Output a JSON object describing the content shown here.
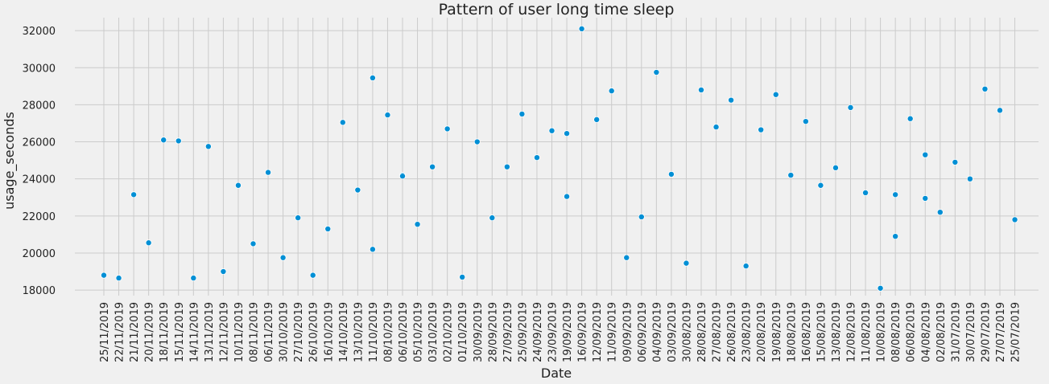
{
  "colors": {
    "background": "#f0f0f0",
    "grid": "#cbcbcb",
    "point": "#008fd5",
    "point_edge": "#ffffff",
    "text": "#222222"
  },
  "chart_data": {
    "type": "scatter",
    "title": "Pattern of user long time sleep",
    "xlabel": "Date",
    "ylabel": "usage_seconds",
    "x_axis_type": "categorical",
    "ylim": [
      17700,
      32700
    ],
    "yticks": [
      18000,
      20000,
      22000,
      24000,
      26000,
      28000,
      30000,
      32000
    ],
    "grid": true,
    "x_tick_rotation": -90,
    "categories": [
      "25/11/2019",
      "22/11/2019",
      "21/11/2019",
      "20/11/2019",
      "18/11/2019",
      "15/11/2019",
      "14/11/2019",
      "13/11/2019",
      "12/11/2019",
      "10/11/2019",
      "08/11/2019",
      "06/11/2019",
      "30/10/2019",
      "27/10/2019",
      "26/10/2019",
      "16/10/2019",
      "14/10/2019",
      "13/10/2019",
      "11/10/2019",
      "08/10/2019",
      "06/10/2019",
      "05/10/2019",
      "03/10/2019",
      "02/10/2019",
      "01/10/2019",
      "30/09/2019",
      "28/09/2019",
      "27/09/2019",
      "25/09/2019",
      "24/09/2019",
      "23/09/2019",
      "19/09/2019",
      "16/09/2019",
      "12/09/2019",
      "11/09/2019",
      "09/09/2019",
      "06/09/2019",
      "04/09/2019",
      "03/09/2019",
      "30/08/2019",
      "28/08/2019",
      "27/08/2019",
      "26/08/2019",
      "23/08/2019",
      "20/08/2019",
      "19/08/2019",
      "18/08/2019",
      "16/08/2019",
      "15/08/2019",
      "13/08/2019",
      "12/08/2019",
      "11/08/2019",
      "10/08/2019",
      "08/08/2019",
      "06/08/2019",
      "04/08/2019",
      "02/08/2019",
      "31/07/2019",
      "30/07/2019",
      "29/07/2019",
      "27/07/2019",
      "25/07/2019"
    ],
    "points": [
      {
        "x": "25/11/2019",
        "y": 18800
      },
      {
        "x": "22/11/2019",
        "y": 18650
      },
      {
        "x": "21/11/2019",
        "y": 23150
      },
      {
        "x": "20/11/2019",
        "y": 20550
      },
      {
        "x": "18/11/2019",
        "y": 26100
      },
      {
        "x": "15/11/2019",
        "y": 26050
      },
      {
        "x": "14/11/2019",
        "y": 18650
      },
      {
        "x": "13/11/2019",
        "y": 25750
      },
      {
        "x": "12/11/2019",
        "y": 19000
      },
      {
        "x": "10/11/2019",
        "y": 23650
      },
      {
        "x": "08/11/2019",
        "y": 20500
      },
      {
        "x": "06/11/2019",
        "y": 24350
      },
      {
        "x": "30/10/2019",
        "y": 19750
      },
      {
        "x": "27/10/2019",
        "y": 21900
      },
      {
        "x": "26/10/2019",
        "y": 18800
      },
      {
        "x": "16/10/2019",
        "y": 21300
      },
      {
        "x": "14/10/2019",
        "y": 27050
      },
      {
        "x": "13/10/2019",
        "y": 23400
      },
      {
        "x": "11/10/2019",
        "y": 29450
      },
      {
        "x": "11/10/2019",
        "y": 20200
      },
      {
        "x": "08/10/2019",
        "y": 27450
      },
      {
        "x": "06/10/2019",
        "y": 24200
      },
      {
        "x": "06/10/2019",
        "y": 24150
      },
      {
        "x": "05/10/2019",
        "y": 21550
      },
      {
        "x": "03/10/2019",
        "y": 24650
      },
      {
        "x": "02/10/2019",
        "y": 26700
      },
      {
        "x": "01/10/2019",
        "y": 18700
      },
      {
        "x": "30/09/2019",
        "y": 26000
      },
      {
        "x": "28/09/2019",
        "y": 21900
      },
      {
        "x": "27/09/2019",
        "y": 24650
      },
      {
        "x": "25/09/2019",
        "y": 27500
      },
      {
        "x": "24/09/2019",
        "y": 25150
      },
      {
        "x": "23/09/2019",
        "y": 26600
      },
      {
        "x": "19/09/2019",
        "y": 26450
      },
      {
        "x": "19/09/2019",
        "y": 23050
      },
      {
        "x": "16/09/2019",
        "y": 32100
      },
      {
        "x": "12/09/2019",
        "y": 27200
      },
      {
        "x": "11/09/2019",
        "y": 28750
      },
      {
        "x": "09/09/2019",
        "y": 19750
      },
      {
        "x": "06/09/2019",
        "y": 21950
      },
      {
        "x": "04/09/2019",
        "y": 29750
      },
      {
        "x": "03/09/2019",
        "y": 24250
      },
      {
        "x": "30/08/2019",
        "y": 19450
      },
      {
        "x": "28/08/2019",
        "y": 28800
      },
      {
        "x": "27/08/2019",
        "y": 26800
      },
      {
        "x": "26/08/2019",
        "y": 28250
      },
      {
        "x": "23/08/2019",
        "y": 19300
      },
      {
        "x": "20/08/2019",
        "y": 26650
      },
      {
        "x": "19/08/2019",
        "y": 28550
      },
      {
        "x": "18/08/2019",
        "y": 24200
      },
      {
        "x": "16/08/2019",
        "y": 27100
      },
      {
        "x": "15/08/2019",
        "y": 23650
      },
      {
        "x": "13/08/2019",
        "y": 24600
      },
      {
        "x": "12/08/2019",
        "y": 27850
      },
      {
        "x": "11/08/2019",
        "y": 23250
      },
      {
        "x": "10/08/2019",
        "y": 18100
      },
      {
        "x": "08/08/2019",
        "y": 23150
      },
      {
        "x": "08/08/2019",
        "y": 20900
      },
      {
        "x": "06/08/2019",
        "y": 27250
      },
      {
        "x": "04/08/2019",
        "y": 25300
      },
      {
        "x": "04/08/2019",
        "y": 22950
      },
      {
        "x": "02/08/2019",
        "y": 22200
      },
      {
        "x": "31/07/2019",
        "y": 24900
      },
      {
        "x": "30/07/2019",
        "y": 24000
      },
      {
        "x": "29/07/2019",
        "y": 28850
      },
      {
        "x": "27/07/2019",
        "y": 27700
      },
      {
        "x": "25/07/2019",
        "y": 21800
      }
    ]
  }
}
